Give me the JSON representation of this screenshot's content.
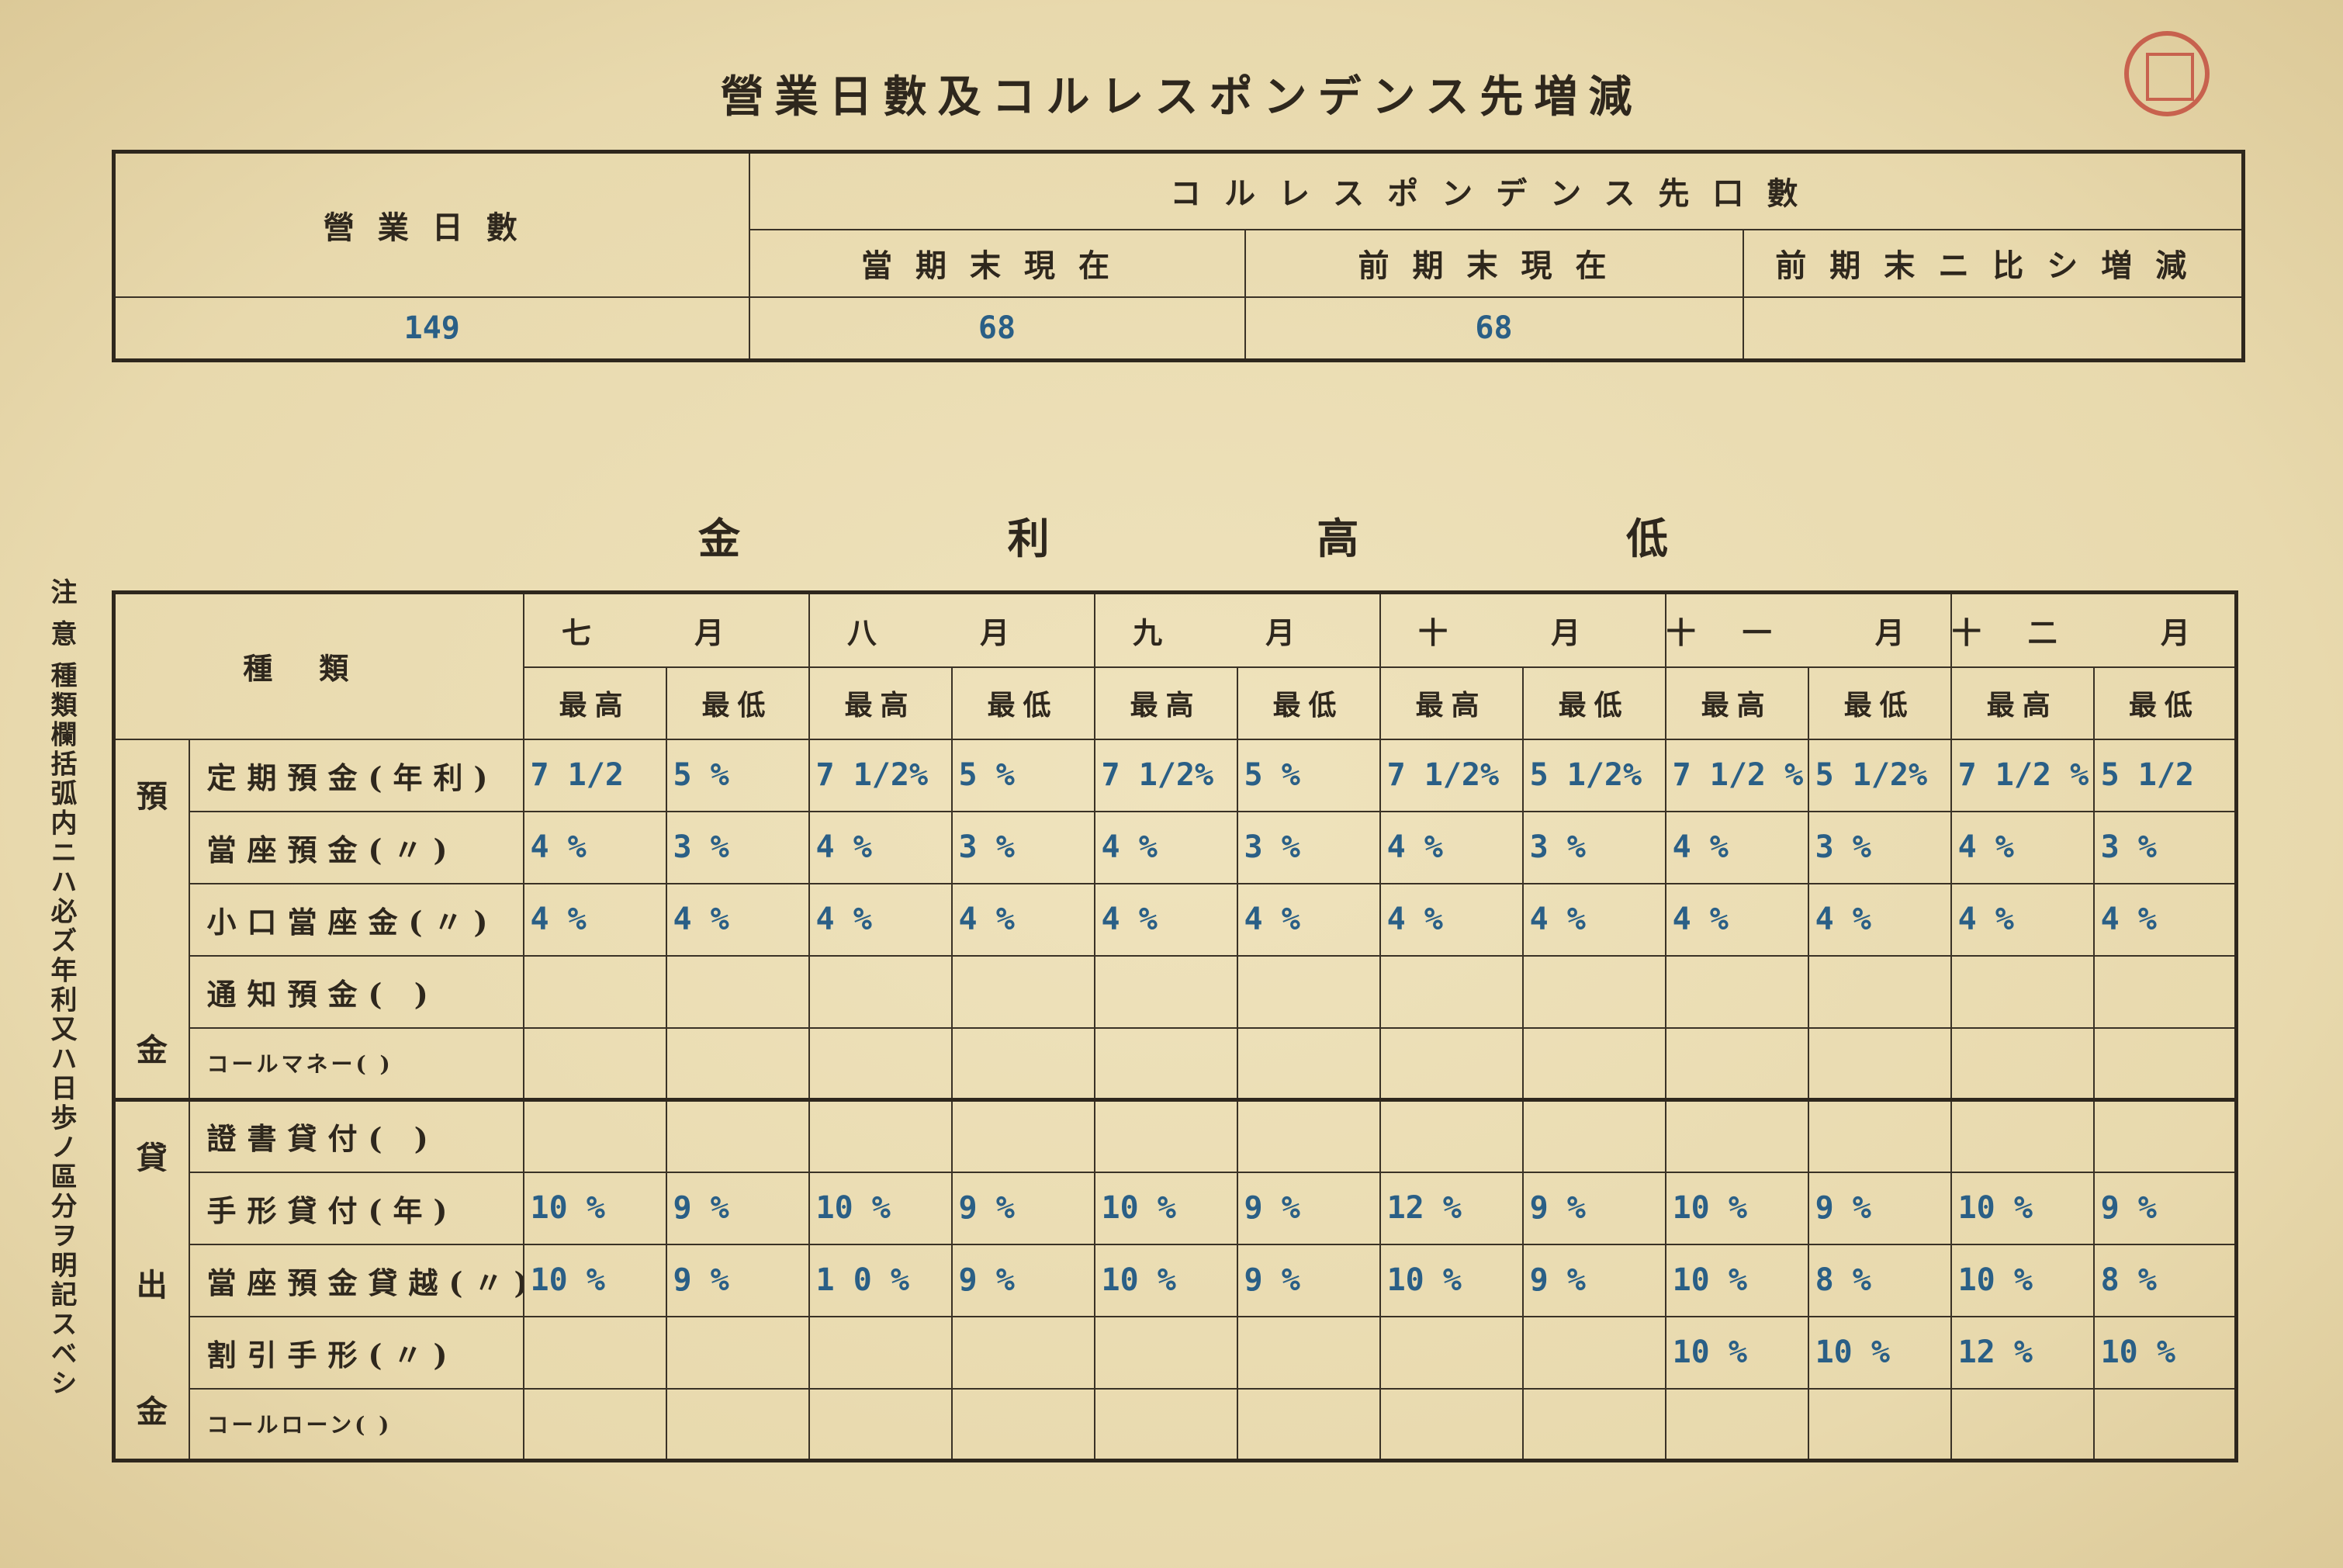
{
  "title": "營業日數及コルレスポンデンス先増減",
  "colors": {
    "paper": "#e8d9ad",
    "ink_typed": "#2a5f86",
    "seal": "#c2473a"
  },
  "business_days": {
    "label": "營業日數",
    "value": "149"
  },
  "correspondents": {
    "header": "コルレスポンデンス先口數",
    "columns": [
      "當期末現在",
      "前期末現在",
      "前期末ニ比シ増減"
    ],
    "values": [
      "68",
      "68",
      ""
    ]
  },
  "rates": {
    "title_chars": [
      "金",
      "利",
      "高",
      "低"
    ],
    "type_header": "種類",
    "months": [
      "七 月",
      "八 月",
      "九 月",
      "十 月",
      "十一 月",
      "十二 月"
    ],
    "high_label": "最高",
    "low_label": "最低",
    "groups": [
      {
        "chars": [
          "預",
          "金"
        ],
        "rows": [
          {
            "label": "定期預金(年利)",
            "values": [
              "7 1/2",
              "5 %",
              "7 1/2%",
              "5 %",
              "7 1/2%",
              "5 %",
              "7 1/2%",
              "5 1/2%",
              "7 1/2 %",
              "5 1/2%",
              "7 1/2 %",
              "5 1/2"
            ]
          },
          {
            "label": "當座預金(〃)",
            "values": [
              "4 %",
              "3 %",
              "4 %",
              "3 %",
              "4 %",
              "3 %",
              "4 %",
              "3 %",
              "4 %",
              "3 %",
              "4 %",
              "3 %"
            ]
          },
          {
            "label": "小口當座金(〃)",
            "values": [
              "4 %",
              "4 %",
              "4 %",
              "4 %",
              "4 %",
              "4 %",
              "4 %",
              "4 %",
              "4 %",
              "4 %",
              "4 %",
              "4 %"
            ]
          },
          {
            "label": "通知預金( )",
            "values": [
              "",
              "",
              "",
              "",
              "",
              "",
              "",
              "",
              "",
              "",
              "",
              ""
            ]
          },
          {
            "label": "コールマネー( )",
            "values": [
              "",
              "",
              "",
              "",
              "",
              "",
              "",
              "",
              "",
              "",
              "",
              ""
            ]
          }
        ]
      },
      {
        "chars": [
          "貸",
          "出",
          "金"
        ],
        "rows": [
          {
            "label": "證書貸付( )",
            "values": [
              "",
              "",
              "",
              "",
              "",
              "",
              "",
              "",
              "",
              "",
              "",
              ""
            ]
          },
          {
            "label": "手形貸付(年)",
            "values": [
              "10 %",
              "9 %",
              "10 %",
              "9 %",
              "10 %",
              "9 %",
              "12 %",
              "9 %",
              "10 %",
              "9 %",
              "10 %",
              "9 %"
            ]
          },
          {
            "label": "當座預金貸越(〃)",
            "values": [
              "10 %",
              "9 %",
              "1 0 %",
              "9 %",
              "10 %",
              "9 %",
              "10 %",
              "9 %",
              "10 %",
              "8 %",
              "10 %",
              "8 %"
            ]
          },
          {
            "label": "割引手形(〃)",
            "values": [
              "",
              "",
              "",
              "",
              "",
              "",
              "",
              "",
              "10 %",
              "10 %",
              "12 %",
              "10 %"
            ]
          },
          {
            "label": "コールローン( )",
            "values": [
              "",
              "",
              "",
              "",
              "",
              "",
              "",
              "",
              "",
              "",
              "",
              ""
            ]
          }
        ]
      }
    ]
  },
  "note": "注 意 種類欄括弧内ニハ必ズ年利又ハ日歩ノ區分ヲ明記スベシ"
}
